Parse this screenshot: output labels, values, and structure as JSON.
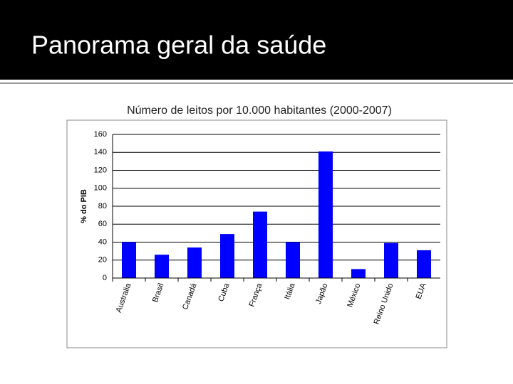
{
  "slide": {
    "title": "Panorama geral da saúde"
  },
  "chart_data": {
    "type": "bar",
    "title": "Número de leitos por 10.000 habitantes (2000-2007)",
    "y_label": "% do PIB",
    "categories": [
      "Australia",
      "Brasil",
      "Canadá",
      "Cuba",
      "França",
      "Itália",
      "Japão",
      "México",
      "Reino Unido",
      "EUA"
    ],
    "values": [
      40,
      26,
      34,
      49,
      74,
      40,
      141,
      10,
      39,
      31
    ],
    "color": "#0000ff",
    "ylim": [
      0,
      160
    ],
    "yticks": [
      0,
      20,
      40,
      60,
      80,
      100,
      120,
      140,
      160
    ],
    "grid": true
  }
}
